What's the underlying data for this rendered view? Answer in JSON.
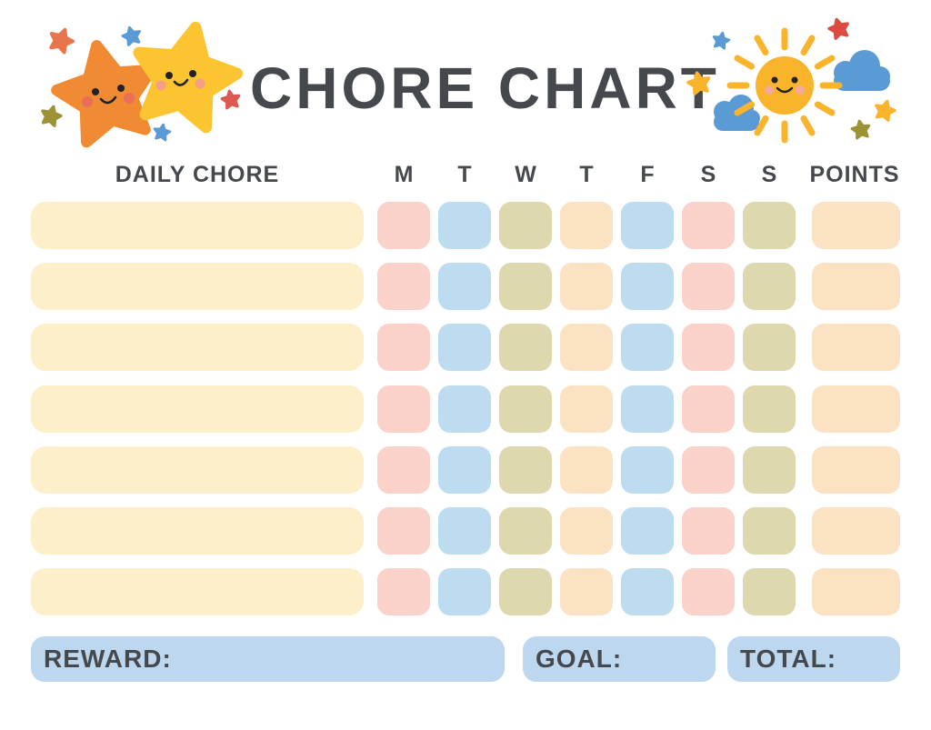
{
  "title": "CHORE CHART",
  "table": {
    "chore_header": "DAILY CHORE",
    "day_headers": [
      "M",
      "T",
      "W",
      "T",
      "F",
      "S",
      "S"
    ],
    "points_header": "POINTS",
    "rows": 7,
    "day_colors_pattern": [
      "pink",
      "blue",
      "olive",
      "peach",
      "blue",
      "pink",
      "olive"
    ],
    "points_color": "peach",
    "chore_field_color": "cream"
  },
  "footer": {
    "reward_label": "REWARD:",
    "goal_label": "GOAL:",
    "total_label": "TOTAL:"
  },
  "colors": {
    "text": "#45484D",
    "cream": "#FCEFC9",
    "pink": "#FAD2CA",
    "blue": "#BEDCF0",
    "olive": "#DED8AE",
    "peach": "#FBE2C2",
    "footer_blue": "#BCD7EE",
    "star_orange": "#F08B33",
    "star_yellow": "#FBC430",
    "mini_star_red": "#DD5850",
    "mini_star_orange": "#E8764C",
    "mini_star_blue": "#5B9BD5",
    "mini_star_olive": "#9C9434",
    "sun_yellow": "#F9B42C",
    "cloud_blue": "#5B9BD5"
  },
  "decorations": {
    "left": "two smiling stars with mini stars",
    "right": "smiling sun with clouds and mini stars"
  }
}
